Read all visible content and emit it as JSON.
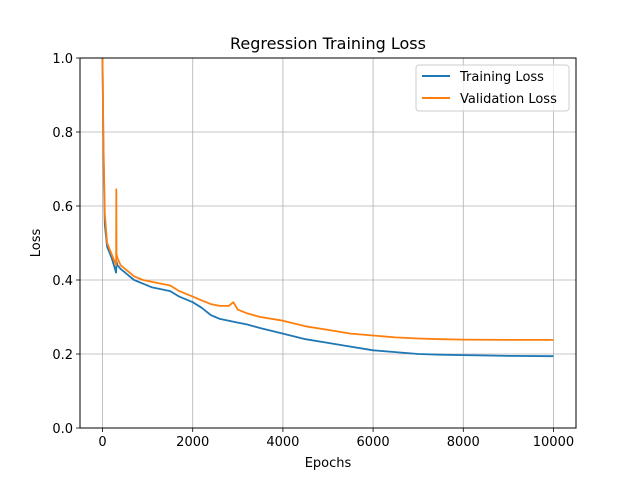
{
  "chart_data": {
    "type": "line",
    "title": "Regression Training Loss",
    "xlabel": "Epochs",
    "ylabel": "Loss",
    "xlim": [
      -500,
      10500
    ],
    "ylim": [
      0.0,
      1.0
    ],
    "x_ticks": [
      0,
      2000,
      4000,
      6000,
      8000,
      10000
    ],
    "y_ticks": [
      0.0,
      0.2,
      0.4,
      0.6,
      0.8,
      1.0
    ],
    "x_tick_labels": [
      "0",
      "2000",
      "4000",
      "6000",
      "8000",
      "10000"
    ],
    "y_tick_labels": [
      "0.0",
      "0.2",
      "0.4",
      "0.6",
      "0.8",
      "1.0"
    ],
    "grid": true,
    "legend_position": "top-right",
    "series": [
      {
        "name": "Training Loss",
        "color": "#1f77b4",
        "x": [
          0,
          20,
          50,
          100,
          200,
          300,
          310,
          330,
          400,
          500,
          700,
          900,
          1100,
          1300,
          1500,
          1700,
          2000,
          2200,
          2400,
          2500,
          2600,
          2800,
          3000,
          3200,
          3500,
          4000,
          4500,
          5000,
          5500,
          6000,
          6500,
          7000,
          7500,
          8000,
          9000,
          10000
        ],
        "y": [
          1.0,
          0.75,
          0.55,
          0.49,
          0.46,
          0.42,
          0.45,
          0.44,
          0.43,
          0.42,
          0.4,
          0.39,
          0.38,
          0.375,
          0.37,
          0.355,
          0.34,
          0.325,
          0.305,
          0.3,
          0.295,
          0.29,
          0.285,
          0.28,
          0.27,
          0.255,
          0.24,
          0.23,
          0.22,
          0.21,
          0.205,
          0.2,
          0.198,
          0.197,
          0.195,
          0.194
        ]
      },
      {
        "name": "Validation Loss",
        "color": "#ff7f0e",
        "x": [
          0,
          20,
          50,
          100,
          200,
          300,
          305,
          310,
          330,
          400,
          500,
          700,
          900,
          1100,
          1300,
          1500,
          1700,
          2000,
          2200,
          2400,
          2600,
          2800,
          2900,
          3000,
          3200,
          3500,
          4000,
          4500,
          5000,
          5500,
          6000,
          6500,
          7000,
          7500,
          8000,
          9000,
          10000
        ],
        "y": [
          1.0,
          0.78,
          0.58,
          0.5,
          0.47,
          0.44,
          0.645,
          0.47,
          0.46,
          0.44,
          0.43,
          0.41,
          0.4,
          0.395,
          0.39,
          0.385,
          0.37,
          0.355,
          0.345,
          0.335,
          0.33,
          0.33,
          0.34,
          0.32,
          0.31,
          0.3,
          0.29,
          0.275,
          0.265,
          0.255,
          0.25,
          0.245,
          0.242,
          0.24,
          0.239,
          0.238,
          0.238
        ]
      }
    ]
  }
}
